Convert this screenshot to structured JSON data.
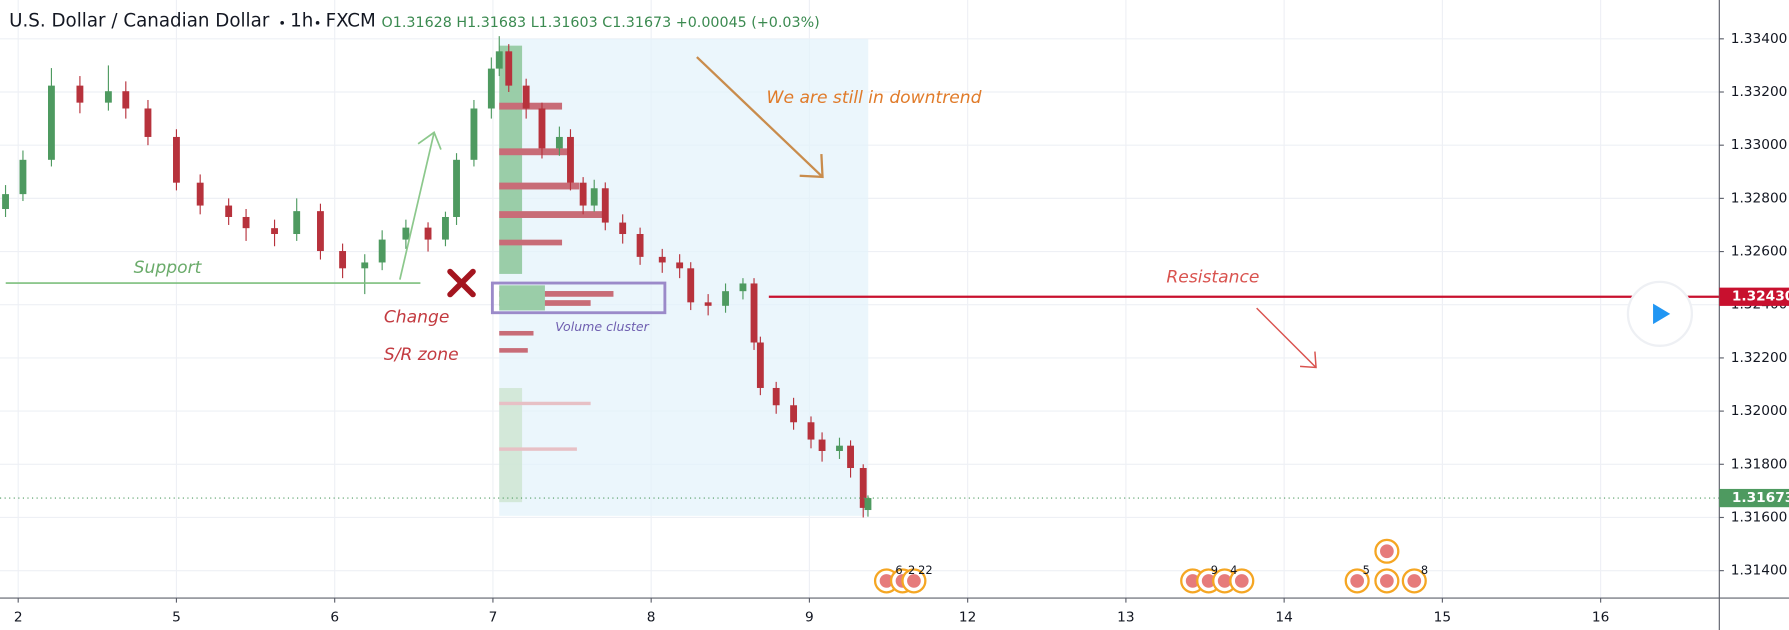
{
  "chart_data": {
    "type": "candlestick",
    "symbol": "U.S. Dollar / Canadian Dollar",
    "interval": "1h",
    "source": "FXCM",
    "ohlc_legend": [
      "O1.31628",
      "H1.31683",
      "L1.31603",
      "C1.31673",
      "+0.00045 (+0.03%)"
    ],
    "up_color": "#4e9a60",
    "down_color": "#b7323c",
    "x": [
      -0.08,
      0.03,
      0.21,
      0.39,
      0.57,
      0.68,
      0.82,
      1.0,
      1.15,
      1.33,
      1.44,
      1.62,
      1.76,
      1.91,
      2.05,
      2.19,
      2.3,
      2.45,
      2.59,
      2.7,
      2.77,
      2.88,
      2.99,
      3.04,
      3.1,
      3.21,
      3.31,
      3.42,
      3.49,
      3.57,
      3.64,
      3.71,
      3.82,
      3.93,
      4.07,
      4.18,
      4.25,
      4.36,
      4.47,
      4.58,
      4.65,
      4.69,
      4.79,
      4.9,
      5.01,
      5.08,
      5.19,
      5.26,
      5.34,
      5.37
    ],
    "open": [
      1.3276,
      1.32816,
      1.32945,
      1.33224,
      1.3316,
      1.33203,
      1.33138,
      1.33031,
      1.32859,
      1.32773,
      1.3273,
      1.32688,
      1.32666,
      1.32752,
      1.32602,
      1.32537,
      1.32559,
      1.32645,
      1.3269,
      1.32645,
      1.3273,
      1.32945,
      1.33138,
      1.33288,
      1.33353,
      1.33224,
      1.33138,
      1.32988,
      1.33031,
      1.32859,
      1.32773,
      1.32838,
      1.32709,
      1.32666,
      1.3258,
      1.32559,
      1.32537,
      1.32409,
      1.32396,
      1.32451,
      1.3248,
      1.32258,
      1.32087,
      1.32022,
      1.31958,
      1.31893,
      1.3185,
      1.3187,
      1.31786,
      1.31628
    ],
    "high": [
      1.3285,
      1.3298,
      1.3329,
      1.3326,
      1.333,
      1.3324,
      1.3317,
      1.3306,
      1.3289,
      1.328,
      1.3276,
      1.3272,
      1.328,
      1.3278,
      1.3263,
      1.3259,
      1.3268,
      1.3272,
      1.3271,
      1.3275,
      1.3297,
      1.3317,
      1.3333,
      1.3341,
      1.3338,
      1.3325,
      1.3316,
      1.3307,
      1.3306,
      1.3288,
      1.3287,
      1.3286,
      1.3274,
      1.3269,
      1.3261,
      1.3259,
      1.3256,
      1.3244,
      1.3248,
      1.325,
      1.325,
      1.3228,
      1.3211,
      1.3205,
      1.3198,
      1.3192,
      1.319,
      1.3189,
      1.318,
      1.31683
    ],
    "low": [
      1.3273,
      1.3279,
      1.3292,
      1.3312,
      1.3313,
      1.331,
      1.33,
      1.3283,
      1.3274,
      1.327,
      1.3264,
      1.3262,
      1.3264,
      1.3257,
      1.325,
      1.3244,
      1.3253,
      1.3261,
      1.326,
      1.3262,
      1.327,
      1.3292,
      1.331,
      1.3326,
      1.332,
      1.331,
      1.3295,
      1.3296,
      1.3283,
      1.3274,
      1.3275,
      1.3268,
      1.3263,
      1.3255,
      1.3252,
      1.325,
      1.3238,
      1.3236,
      1.3237,
      1.3242,
      1.3223,
      1.3206,
      1.3199,
      1.3193,
      1.3186,
      1.3181,
      1.3182,
      1.3175,
      1.316,
      1.31603
    ],
    "close": [
      1.32816,
      1.32945,
      1.33224,
      1.3316,
      1.33203,
      1.33138,
      1.33031,
      1.32859,
      1.32773,
      1.3273,
      1.32688,
      1.32666,
      1.32752,
      1.32602,
      1.32537,
      1.32559,
      1.32645,
      1.3269,
      1.32645,
      1.3273,
      1.32945,
      1.33138,
      1.33288,
      1.33353,
      1.33224,
      1.33138,
      1.32988,
      1.33031,
      1.32859,
      1.32773,
      1.32838,
      1.32709,
      1.32666,
      1.3258,
      1.32559,
      1.32537,
      1.32409,
      1.32396,
      1.32451,
      1.3248,
      1.32258,
      1.32087,
      1.32022,
      1.31958,
      1.31893,
      1.3185,
      1.3187,
      1.31786,
      1.31636,
      1.31673
    ],
    "xlim": [
      -0.115,
      10.75
    ],
    "xticks": [
      {
        "value": 0,
        "label": "2"
      },
      {
        "value": 1,
        "label": "5"
      },
      {
        "value": 2,
        "label": "6"
      },
      {
        "value": 3,
        "label": "7"
      },
      {
        "value": 4,
        "label": "8"
      },
      {
        "value": 5,
        "label": "9"
      },
      {
        "value": 6,
        "label": "12"
      },
      {
        "value": 7,
        "label": "13"
      },
      {
        "value": 8,
        "label": "14"
      },
      {
        "value": 9,
        "label": "15"
      },
      {
        "value": 10,
        "label": "16"
      }
    ],
    "ylim": [
      1.31297,
      1.33546
    ],
    "yticks": [
      {
        "value": 1.314,
        "label": "1.31400"
      },
      {
        "value": 1.316,
        "label": "1.31600"
      },
      {
        "value": 1.318,
        "label": "1.31800"
      },
      {
        "value": 1.32,
        "label": "1.32000"
      },
      {
        "value": 1.322,
        "label": "1.32200"
      },
      {
        "value": 1.324,
        "label": "1.32400"
      },
      {
        "value": 1.326,
        "label": "1.32600"
      },
      {
        "value": 1.328,
        "label": "1.32800"
      },
      {
        "value": 1.33,
        "label": "1.33000"
      },
      {
        "value": 1.332,
        "label": "1.33200"
      },
      {
        "value": 1.334,
        "label": "1.33400"
      }
    ],
    "grid": true,
    "resistance_level": {
      "value": 1.3243,
      "label": "1.32430",
      "color": "#c8102e"
    },
    "last_price": {
      "value": 1.31673,
      "label": "1.31673",
      "color": "#4e9a60"
    },
    "support_level": 1.32482,
    "annotations": {
      "downtrend": "We are still in downtrend",
      "support": "Support",
      "change": "Change",
      "sr_zone": "S/R zone",
      "resistance": "Resistance",
      "volume_cluster": "Volume cluster"
    },
    "events": [
      "6",
      "2",
      "22",
      "9",
      "4",
      "5",
      "8"
    ]
  }
}
